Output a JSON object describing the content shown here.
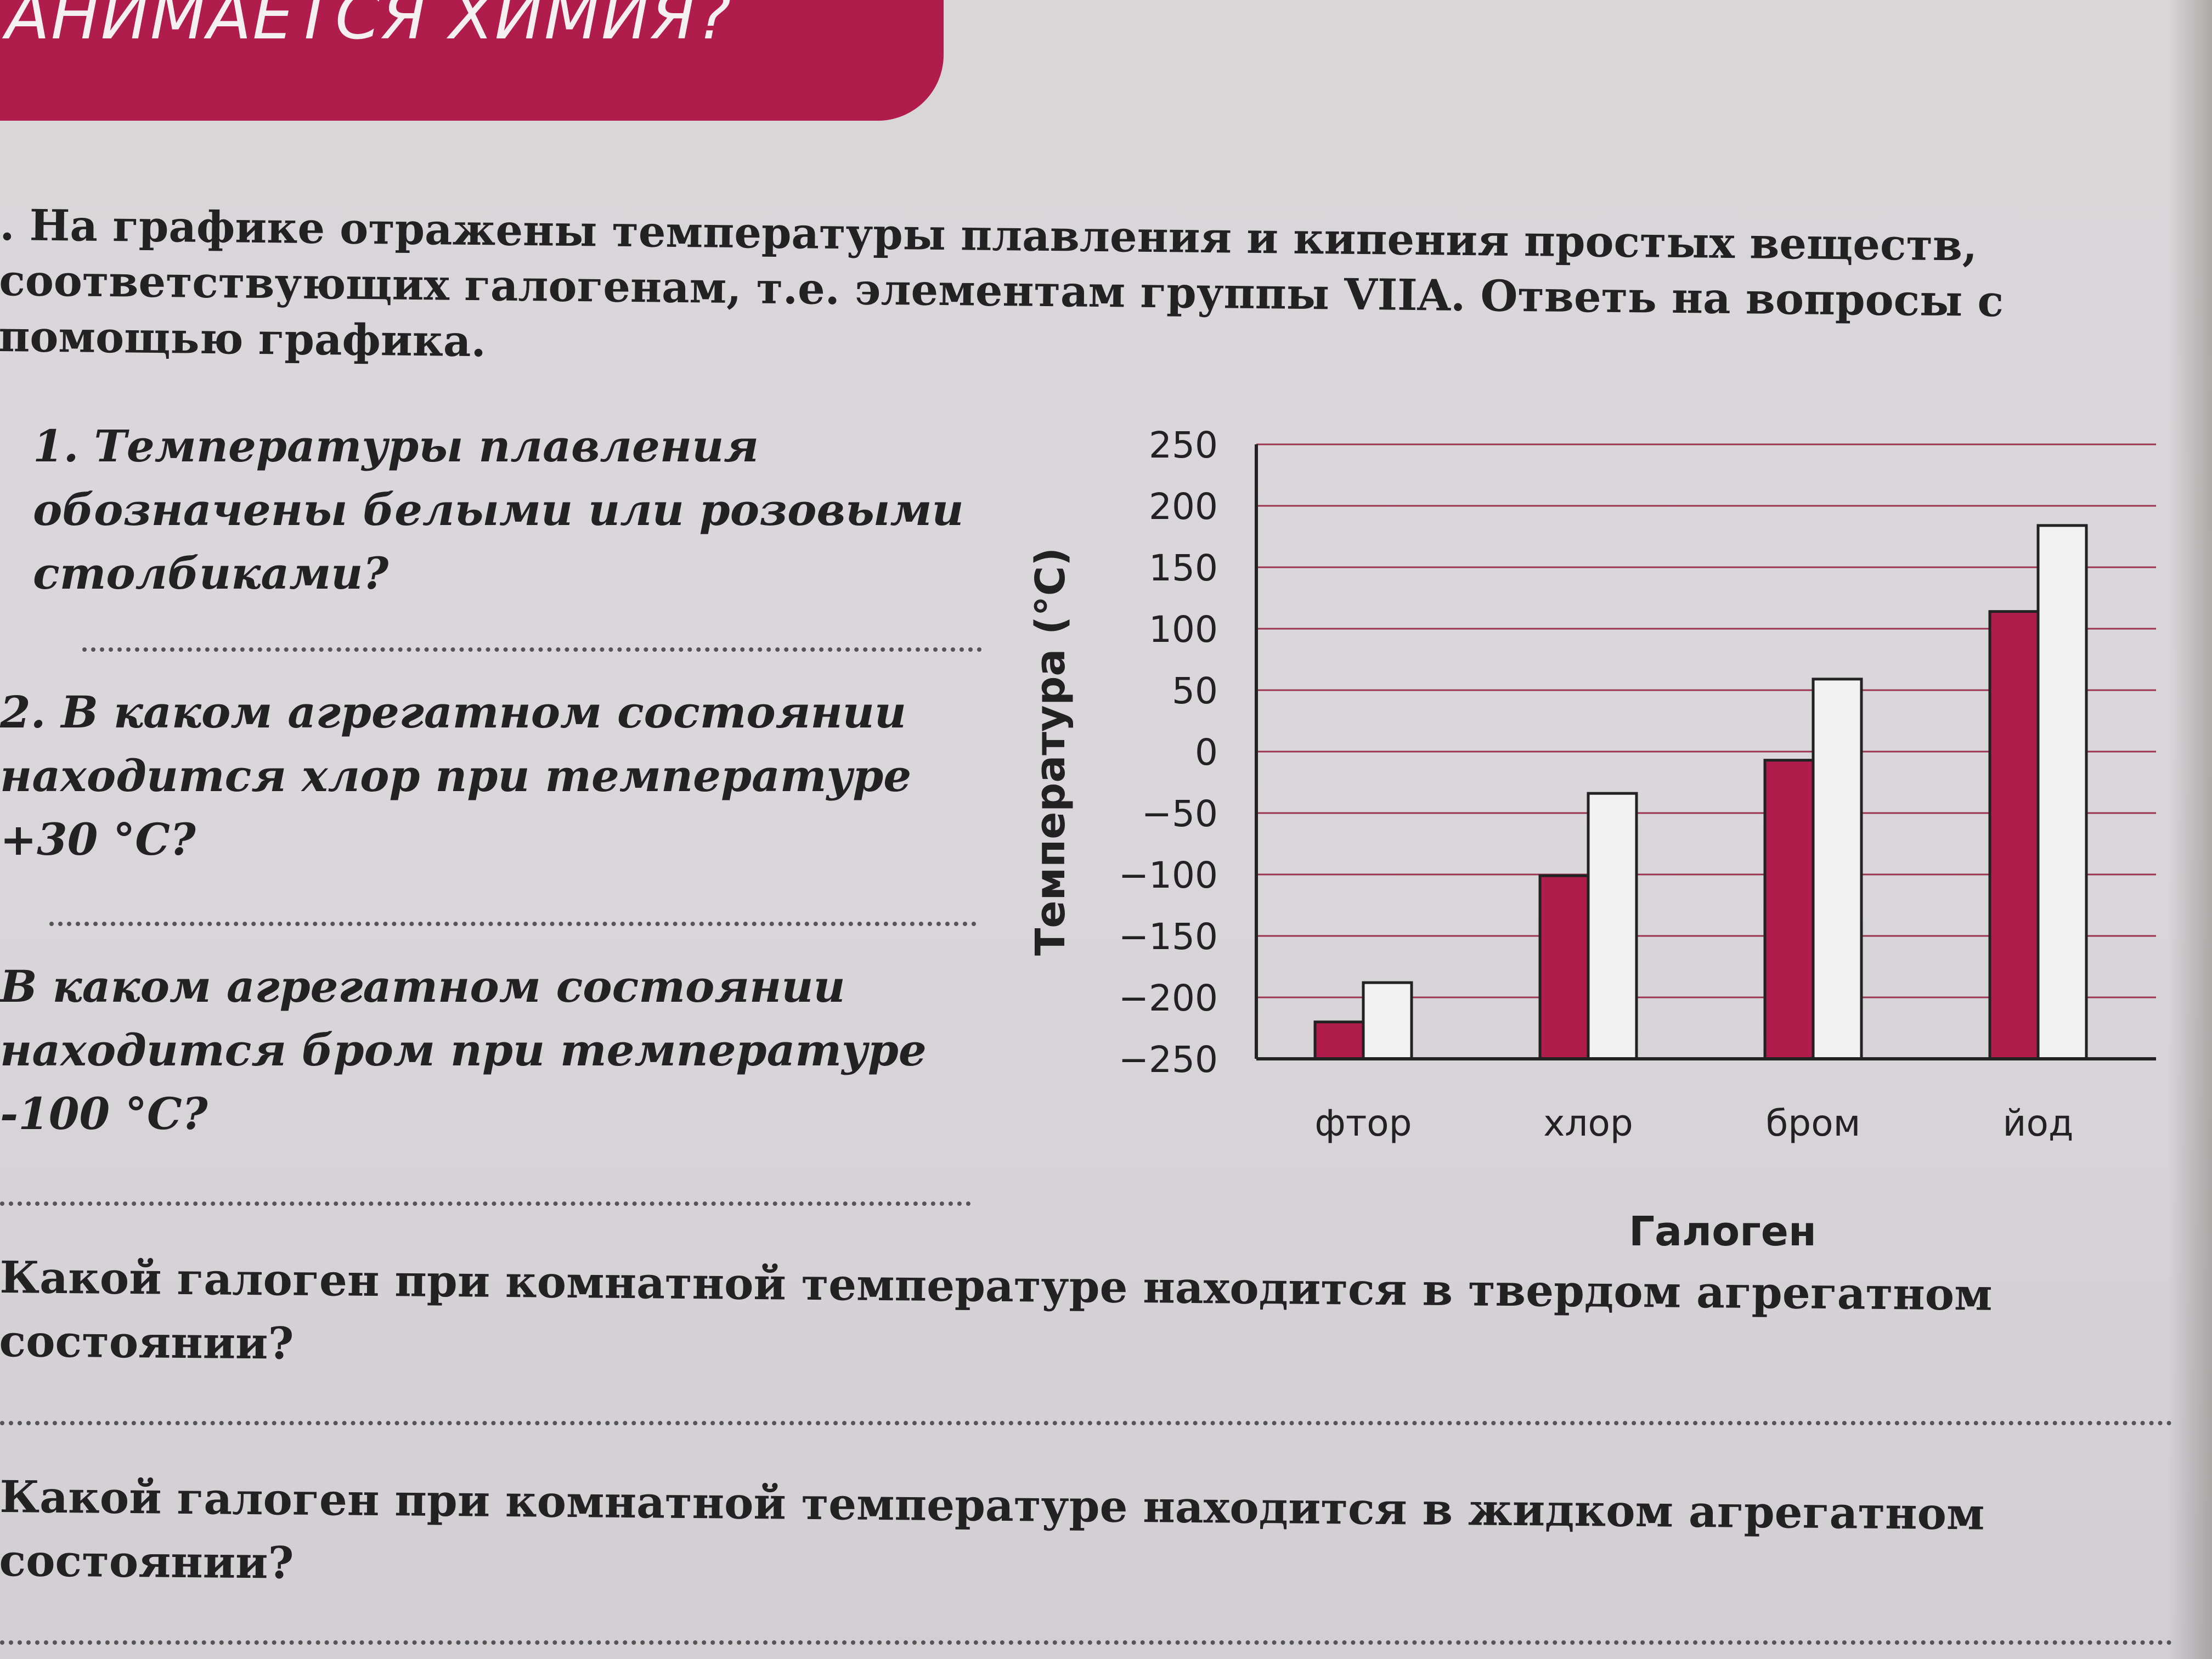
{
  "header": {
    "banner_title": "АНИМАЕТСЯ ХИМИЯ?"
  },
  "task": {
    "intro": ". На графике отражены температуры плавления и кипения простых веществ, соответствующих галогенам, т.е. элементам группы VIIA. Ответь на вопросы с помощью графика.",
    "q1": "1. Температуры плавления обозначены белыми или розовыми столбиками?",
    "q2": "2. В каком агрегатном состоянии находится хлор при температуре +30 °С?",
    "q3": "В каком агрегатном состоянии находится бром при температуре -100 °С?",
    "q4": "Какой галоген при комнатной температуре находится в твердом агрегатном состоянии?",
    "q5": "Какой галоген при комнатной температуре находится в жидком агрегатном состоянии?"
  },
  "chart_data": {
    "type": "bar",
    "xlabel": "Галоген",
    "ylabel": "Температура (°С)",
    "ylim": [
      -250,
      250
    ],
    "yticks": [
      "250",
      "200",
      "150",
      "100",
      "50",
      "0",
      "−50",
      "−100",
      "−150",
      "−200",
      "−250"
    ],
    "categories": [
      "фтор",
      "хлор",
      "бром",
      "йод"
    ],
    "series": [
      {
        "color": "#b01d4c",
        "values": [
          -220,
          -101,
          -7,
          114
        ]
      },
      {
        "color": "#f2f2f2",
        "values": [
          -188,
          -34,
          59,
          184
        ]
      }
    ],
    "grid": true,
    "legend": "none"
  }
}
